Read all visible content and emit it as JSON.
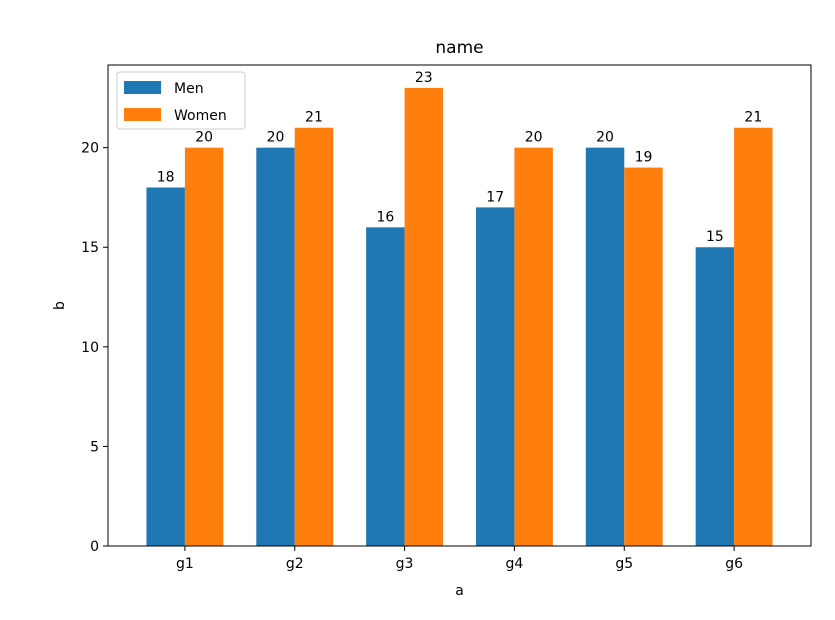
{
  "chart_data": {
    "type": "bar",
    "title": "name",
    "xlabel": "a",
    "ylabel": "b",
    "categories": [
      "g1",
      "g2",
      "g3",
      "g4",
      "g5",
      "g6"
    ],
    "series": [
      {
        "name": "Men",
        "color": "#1f77b4",
        "values": [
          18,
          20,
          16,
          17,
          20,
          15
        ]
      },
      {
        "name": "Women",
        "color": "#ff7f0e",
        "values": [
          20,
          21,
          23,
          20,
          19,
          21
        ]
      }
    ],
    "ylim": [
      0,
      24.15
    ],
    "yticks": [
      0,
      5,
      10,
      15,
      20
    ],
    "grid": false,
    "legend_position": "top-left",
    "data_labels": true
  }
}
